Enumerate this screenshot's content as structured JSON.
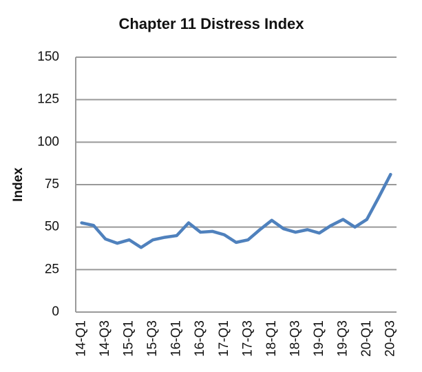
{
  "chart_data": {
    "type": "line",
    "title": "Chapter 11 Distress Index",
    "y_label": "Index",
    "categories": [
      "14-Q1",
      null,
      "14-Q3",
      null,
      "15-Q1",
      null,
      "15-Q3",
      null,
      "16-Q1",
      null,
      "16-Q3",
      null,
      "17-Q1",
      null,
      "17-Q3",
      null,
      "18-Q1",
      null,
      "18-Q3",
      null,
      "19-Q1",
      null,
      "19-Q3",
      null,
      "20-Q1",
      null,
      "20-Q3"
    ],
    "values": [
      52.5,
      51,
      43,
      40.5,
      42.5,
      38,
      42.5,
      44,
      45,
      52.5,
      47,
      47.5,
      45.5,
      41,
      42.5,
      48.5,
      54,
      49,
      47,
      48.5,
      46.5,
      51,
      54.5,
      50,
      54.5,
      67.5,
      81
    ],
    "color": "#4f81bd",
    "ylim": [
      0,
      150
    ],
    "yticks": [
      0,
      25,
      50,
      75,
      100,
      125,
      150
    ],
    "grid": true
  }
}
